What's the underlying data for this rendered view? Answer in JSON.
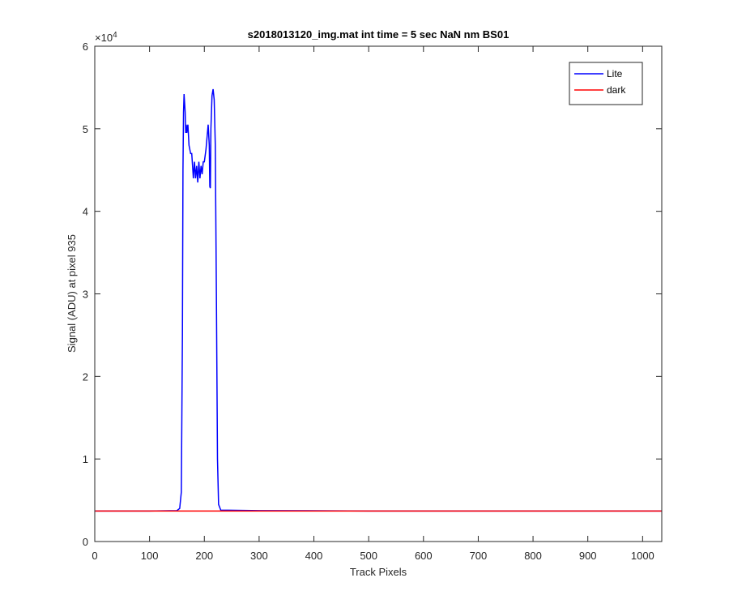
{
  "chart_data": {
    "type": "line",
    "title": "s2018013120_img.mat int time = 5 sec  NaN nm BS01",
    "x_label": "Track Pixels",
    "y_label": "Signal (ADU) at pixel 935",
    "y_exponent": {
      "base": "×10",
      "power": "4"
    },
    "xlim": [
      0,
      1035
    ],
    "xticks": [
      0,
      100,
      200,
      300,
      400,
      500,
      600,
      700,
      800,
      900,
      1000
    ],
    "ylim": [
      0,
      6
    ],
    "yticks": [
      0,
      1,
      2,
      3,
      4,
      5,
      6
    ],
    "grid": false,
    "legend": "northeast",
    "series": [
      {
        "name": "Lite",
        "color": "#0000ff",
        "x": [
          1,
          100,
          150,
          155,
          158,
          160,
          161,
          162,
          163,
          165,
          166,
          167,
          168,
          170,
          172,
          175,
          177,
          179,
          180,
          182,
          184,
          186,
          188,
          190,
          192,
          194,
          196,
          198,
          200,
          203,
          205,
          207,
          209,
          210,
          211,
          212,
          214,
          216,
          218,
          220,
          222,
          224,
          226,
          230,
          300,
          500,
          1035
        ],
        "values": [
          0.37,
          0.37,
          0.375,
          0.4,
          0.6,
          2.5,
          4.5,
          5.2,
          5.42,
          5.2,
          4.95,
          5.05,
          4.95,
          5.05,
          4.8,
          4.7,
          4.7,
          4.5,
          4.4,
          4.6,
          4.4,
          4.55,
          4.35,
          4.6,
          4.4,
          4.55,
          4.45,
          4.6,
          4.6,
          4.75,
          4.9,
          5.05,
          4.8,
          4.3,
          4.28,
          5.0,
          5.4,
          5.48,
          5.35,
          4.8,
          3.0,
          1.0,
          0.45,
          0.38,
          0.375,
          0.37,
          0.37
        ]
      },
      {
        "name": "dark",
        "color": "#ff0000",
        "x": [
          1,
          300,
          600,
          1035
        ],
        "values": [
          0.37,
          0.37,
          0.37,
          0.37
        ]
      }
    ]
  }
}
